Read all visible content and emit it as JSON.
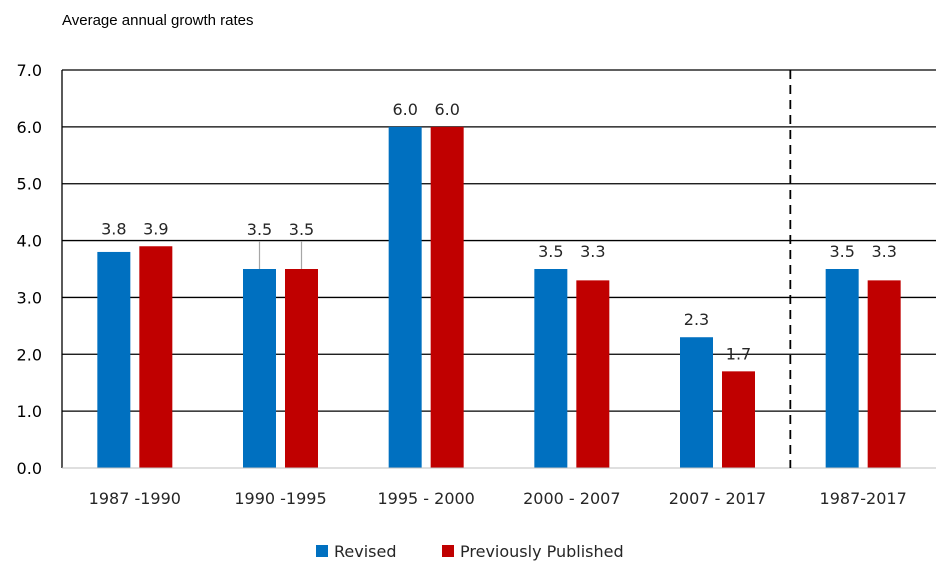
{
  "chart_data": {
    "type": "bar",
    "subtitle": "Average annual growth rates",
    "categories": [
      "1987 -1990",
      "1990 -1995",
      "1995 - 2000",
      "2000 - 2007",
      "2007 - 2017",
      "1987-2017"
    ],
    "series": [
      {
        "name": "Revised",
        "color": "#0070C0",
        "values": [
          3.8,
          3.5,
          6.0,
          3.5,
          2.3,
          3.5
        ],
        "labels": [
          "3.8",
          "3.5",
          "6.0",
          "3.5",
          "2.3",
          "3.5"
        ]
      },
      {
        "name": "Previously Published",
        "color": "#C00000",
        "values": [
          3.9,
          3.5,
          6.0,
          3.3,
          1.7,
          3.3
        ],
        "labels": [
          "3.9",
          "3.5",
          "6.0",
          "3.3",
          "1.7",
          "3.3"
        ]
      }
    ],
    "ylim": [
      0,
      7
    ],
    "yticks": [
      "0.0",
      "1.0",
      "2.0",
      "3.0",
      "4.0",
      "5.0",
      "6.0",
      "7.0"
    ],
    "grid": true,
    "separator_before_category": "1987-2017",
    "legend_position": "bottom"
  }
}
